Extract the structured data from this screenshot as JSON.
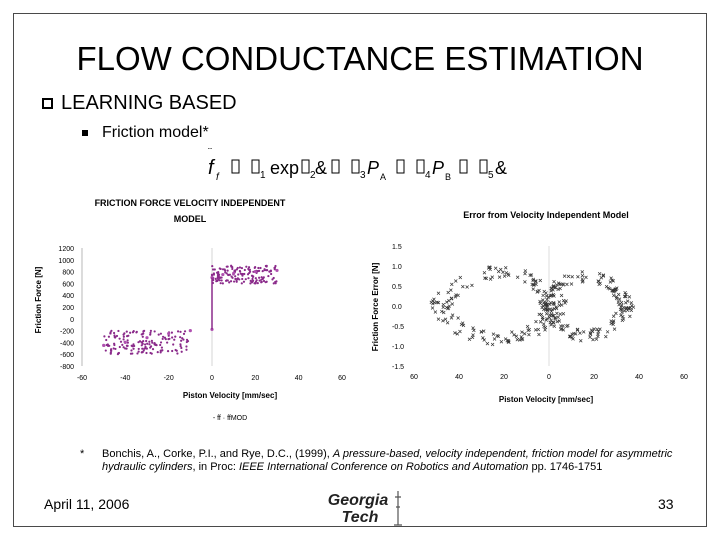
{
  "slide": {
    "title": "FLOW CONDUCTANCE ESTIMATION",
    "bullet1": "LEARNING BASED",
    "bullet2": "Friction model*",
    "formula": {
      "lhs": "f",
      "sub_f": "f",
      "t1": "1",
      "exp": "exp",
      "t2": "2",
      "t3": "3",
      "PA": "P",
      "PA_sub": "A",
      "t4": "4",
      "PB": "P",
      "PB_sub": "B",
      "t5": "5"
    },
    "footnote_mark": "*",
    "footnote_a": "Bonchis, A., Corke, P.I., and Rye, D.C., (1999), ",
    "footnote_b": "A pressure-based, velocity independent, friction model for asymmetric hydraulic cylinders",
    "footnote_c": ", in Proc: ",
    "footnote_d": "IEEE International Conference on Robotics and Automation",
    "footnote_e": " pp. 1746-1751",
    "date": "April 11, 2006",
    "page_number": "33",
    "logo_line1": "Georgia",
    "logo_line2": "Tech"
  },
  "chart_data": [
    {
      "type": "scatter",
      "title_line1": "FRICTION FORCE VELOCITY INDEPENDENT",
      "title_line2": "MODEL",
      "xlabel": "Piston Velocity [mm/sec]",
      "ylabel": "Friction Force [N]",
      "xlim": [
        -60,
        60
      ],
      "ylim": [
        -800,
        1200
      ],
      "xticks": [
        "-60",
        "-40",
        "-20",
        "0",
        "20",
        "40",
        "60"
      ],
      "yticks": [
        "1200",
        "1000",
        "800",
        "600",
        "400",
        "200",
        "0",
        "-200",
        "-400",
        "-600",
        "-800"
      ],
      "legend": "- ff · ffMOD",
      "series": [
        {
          "name": "ff",
          "color": "#8a2a8a",
          "clusters": [
            {
              "x": [
                -50,
                -10
              ],
              "y": [
                -600,
                -200
              ]
            },
            {
              "x": [
                0,
                30
              ],
              "y": [
                600,
                900
              ]
            }
          ]
        },
        {
          "name": "ffMOD",
          "color": "#b050b0",
          "points": [
            [
              -50,
              -450
            ],
            [
              -40,
              -400
            ],
            [
              -30,
              -320
            ],
            [
              -20,
              -250
            ],
            [
              -10,
              -200
            ],
            [
              0,
              -180
            ],
            [
              0,
              700
            ],
            [
              5,
              750
            ],
            [
              10,
              770
            ],
            [
              20,
              800
            ],
            [
              30,
              820
            ]
          ]
        }
      ]
    },
    {
      "type": "scatter",
      "title": "Error from Velocity Independent Model",
      "xlabel": "Piston Velocity [mm/sec]",
      "ylabel": "Friction Force Error [N]",
      "xlim": [
        -60,
        60
      ],
      "ylim": [
        -1.5,
        1.5
      ],
      "xticks": [
        "60",
        "40",
        "20",
        "0",
        "20",
        "40",
        "60"
      ],
      "yticks": [
        "1.5",
        "1.0",
        "0.5",
        "0.0",
        "-0.5",
        "-1.0",
        "-1.5"
      ],
      "series": [
        {
          "name": "",
          "color": "#333333",
          "loops": [
            {
              "cx": -22,
              "cy": 0.0,
              "rx": 28,
              "ry": 0.9
            },
            {
              "cx": 16,
              "cy": 0.0,
              "rx": 20,
              "ry": 0.8
            }
          ]
        }
      ]
    }
  ]
}
